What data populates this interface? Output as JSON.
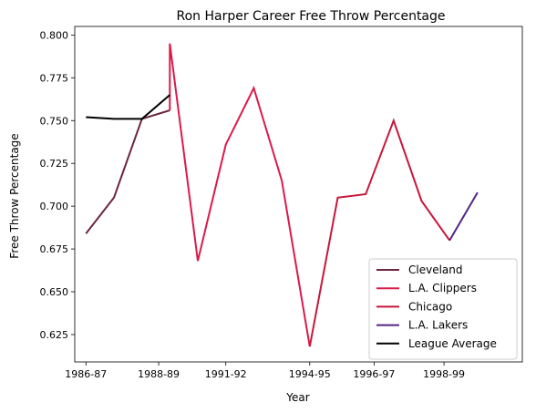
{
  "chart_data": {
    "type": "line",
    "title": "Ron Harper Career Free Throw Percentage",
    "xlabel": "Year",
    "ylabel": "Free Throw Percentage",
    "xlim": [
      1985.6,
      2001.6
    ],
    "ylim": [
      0.609,
      0.805
    ],
    "x_ticks": [
      {
        "x": 1986,
        "label": "1986-87"
      },
      {
        "x": 1988.6,
        "label": "1988-89"
      },
      {
        "x": 1991,
        "label": "1991-92"
      },
      {
        "x": 1994,
        "label": "1994-95"
      },
      {
        "x": 1996.3,
        "label": "1996-97"
      },
      {
        "x": 1998.8,
        "label": "1998-99"
      }
    ],
    "y_ticks": [
      {
        "y": 0.625,
        "label": "0.625"
      },
      {
        "y": 0.65,
        "label": "0.650"
      },
      {
        "y": 0.675,
        "label": "0.675"
      },
      {
        "y": 0.7,
        "label": "0.700"
      },
      {
        "y": 0.725,
        "label": "0.725"
      },
      {
        "y": 0.75,
        "label": "0.750"
      },
      {
        "y": 0.775,
        "label": "0.775"
      },
      {
        "y": 0.8,
        "label": "0.800"
      }
    ],
    "series": [
      {
        "name": "Cleveland",
        "color": "#6b2540",
        "points": [
          [
            1986,
            0.684
          ],
          [
            1987,
            0.705
          ],
          [
            1988,
            0.751
          ],
          [
            1989,
            0.756
          ]
        ]
      },
      {
        "name": "L.A. Clippers",
        "color": "#dc1a49",
        "points": [
          [
            1989,
            0.756
          ],
          [
            1989,
            0.795
          ],
          [
            1990,
            0.668
          ],
          [
            1991,
            0.736
          ],
          [
            1992,
            0.769
          ],
          [
            1993,
            0.715
          ],
          [
            1994,
            0.618
          ]
        ]
      },
      {
        "name": "Chicago",
        "color": "#c8173c",
        "points": [
          [
            1994,
            0.618
          ],
          [
            1995,
            0.705
          ],
          [
            1996,
            0.707
          ],
          [
            1997,
            0.75
          ],
          [
            1998,
            0.703
          ],
          [
            1999,
            0.68
          ]
        ]
      },
      {
        "name": "L.A. Lakers",
        "color": "#552583",
        "points": [
          [
            1999,
            0.68
          ],
          [
            2000,
            0.708
          ]
        ]
      },
      {
        "name": "League Average",
        "color": "#000000",
        "points": [
          [
            1986,
            0.752
          ],
          [
            1987,
            0.751
          ],
          [
            1988,
            0.751
          ],
          [
            1989,
            0.765
          ]
        ]
      }
    ],
    "grid": false,
    "legend_position": "lower-right"
  }
}
